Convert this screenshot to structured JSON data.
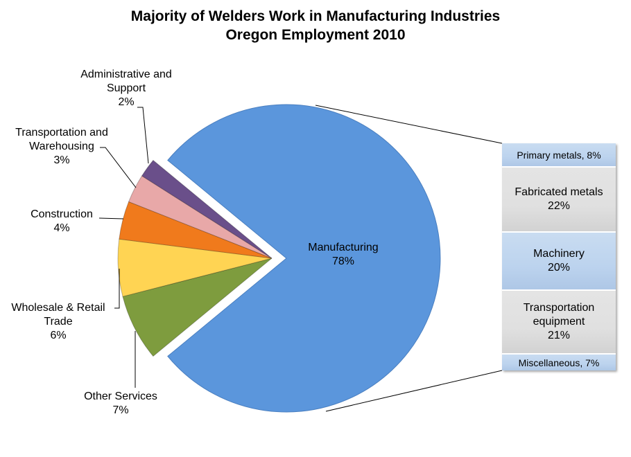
{
  "title": {
    "line1": "Majority of Welders Work in Manufacturing Industries",
    "line2": "Oregon Employment 2010"
  },
  "chart_data": [
    {
      "type": "pie",
      "title": "Majority of Welders Work in Manufacturing Industries — Oregon Employment 2010",
      "categories": [
        "Manufacturing",
        "Other Services",
        "Wholesale & Retail Trade",
        "Construction",
        "Transportation and Warehousing",
        "Administrative and Support"
      ],
      "values": [
        78,
        7,
        6,
        4,
        3,
        2
      ],
      "unit": "%",
      "colors": [
        "#5b96dc",
        "#7e9c3e",
        "#ffd453",
        "#f07a1c",
        "#e8a8a8",
        "#6a4f8a"
      ],
      "exploded": [
        "Other Services",
        "Wholesale & Retail Trade",
        "Construction",
        "Transportation and Warehousing",
        "Administrative and Support"
      ],
      "labels": [
        {
          "name": "Manufacturing",
          "value": "78%"
        },
        {
          "name": "Other Services",
          "value": "7%"
        },
        {
          "name": "Wholesale & Retail Trade",
          "value": "6%"
        },
        {
          "name": "Construction",
          "value": "4%"
        },
        {
          "name": "Transportation and Warehousing",
          "value": "3%"
        },
        {
          "name": "Administrative and Support",
          "value": "2%"
        }
      ]
    },
    {
      "type": "bar",
      "subtitle": "Manufacturing breakdown (stacked bar-of-pie)",
      "categories": [
        "Primary metals",
        "Fabricated metals",
        "Machinery",
        "Transportation equipment",
        "Miscellaneous"
      ],
      "values": [
        8,
        22,
        20,
        21,
        7
      ],
      "unit": "%",
      "colors": [
        "#bcd3ee",
        "#e0e0e0",
        "#bcd3ee",
        "#e0e0e0",
        "#bcd3ee"
      ]
    }
  ],
  "pie_labels": {
    "manufacturing": {
      "name": "Manufacturing",
      "value": "78%"
    },
    "other": {
      "name": "Other Services",
      "value": "7%"
    },
    "wholesale": {
      "line1": "Wholesale & Retail",
      "line2": "Trade",
      "value": "6%"
    },
    "construction": {
      "name": "Construction",
      "value": "4%"
    },
    "transport": {
      "line1": "Transportation and",
      "line2": "Warehousing",
      "value": "3%"
    },
    "admin": {
      "line1": "Administrative and",
      "line2": "Support",
      "value": "2%"
    }
  },
  "bar_labels": {
    "primary": "Primary metals, 8%",
    "fabricated": {
      "name": "Fabricated metals",
      "value": "22%"
    },
    "machinery": {
      "name": "Machinery",
      "value": "20%"
    },
    "transport_equip": {
      "line1": "Transportation",
      "line2": "equipment",
      "value": "21%"
    },
    "misc": "Miscellaneous, 7%"
  }
}
